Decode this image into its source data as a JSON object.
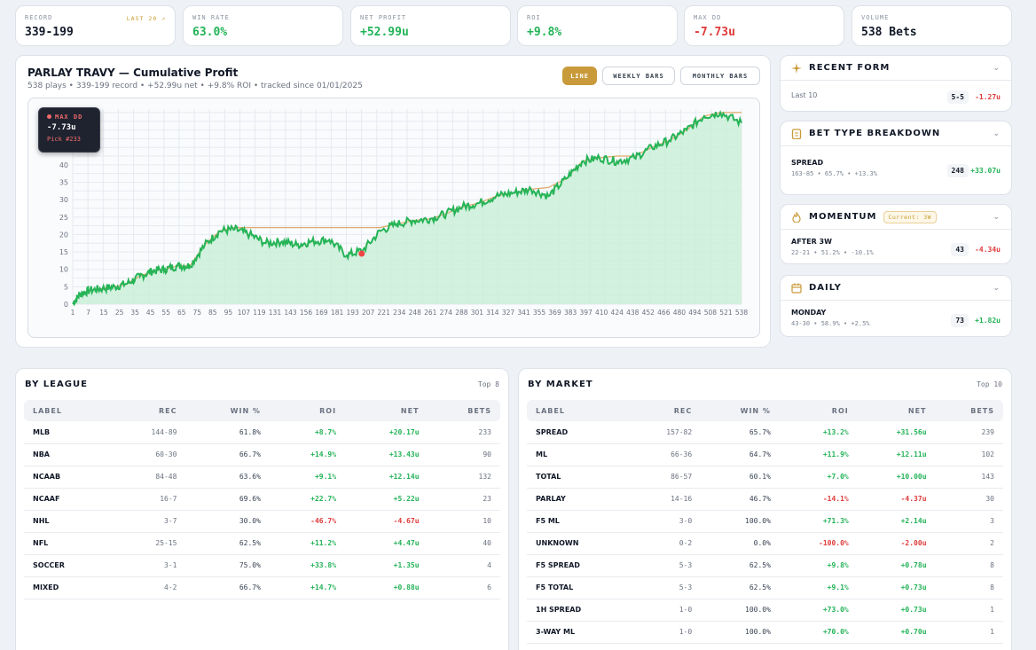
{
  "stats": [
    {
      "label": "RECORD",
      "value": "339-199",
      "tag": "LAST 20 ↗",
      "color": "#111827"
    },
    {
      "label": "WIN RATE",
      "value": "63.0%",
      "color": "#22b357"
    },
    {
      "label": "NET PROFIT",
      "value": "+52.99u",
      "color": "#22b357"
    },
    {
      "label": "ROI",
      "value": "+9.8%",
      "color": "#22b357"
    },
    {
      "label": "MAX DD",
      "value": "-7.73u",
      "color": "#e03b3b"
    },
    {
      "label": "VOLUME",
      "value": "538 Bets",
      "color": "#111827"
    }
  ],
  "chart": {
    "title": "PARLAY TRAVY — Cumulative Profit",
    "subtitle": "538 plays • 339-199 record • +52.99u net • +9.8% ROI • tracked since 01/01/2025",
    "toggles": [
      {
        "label": "LINE",
        "active": true
      },
      {
        "label": "WEEKLY BARS",
        "active": false
      },
      {
        "label": "MONTHLY BARS",
        "active": false
      }
    ],
    "tooltip": {
      "label": "MAX DD",
      "value": "-7.73u",
      "pick": "Pick #233"
    }
  },
  "chart_data": {
    "type": "area",
    "title": "PARLAY TRAVY — Cumulative Profit",
    "x_ticks": [
      "1",
      "7",
      "15",
      "25",
      "35",
      "45",
      "55",
      "65",
      "75",
      "85",
      "95",
      "107",
      "119",
      "131",
      "143",
      "156",
      "169",
      "181",
      "193",
      "207",
      "221",
      "234",
      "248",
      "261",
      "274",
      "288",
      "301",
      "314",
      "327",
      "341",
      "355",
      "369",
      "383",
      "397",
      "410",
      "424",
      "438",
      "452",
      "466",
      "480",
      "494",
      "508",
      "521",
      "538"
    ],
    "y_ticks": [
      0,
      5,
      10,
      15,
      20,
      25,
      30,
      35,
      40,
      45,
      50,
      55
    ],
    "ylim": [
      0,
      56
    ],
    "xlim": [
      1,
      538
    ],
    "series": [
      {
        "x": [
          1,
          7,
          15,
          25,
          35,
          45,
          55,
          65,
          75,
          85,
          95,
          107,
          119,
          131,
          143,
          156,
          169,
          181,
          193,
          207,
          221,
          234,
          248,
          261,
          274,
          288,
          301,
          314,
          327,
          341,
          355,
          369,
          383,
          397,
          410,
          424,
          438,
          452,
          466,
          480,
          494,
          508,
          521,
          538
        ],
        "values": [
          0,
          3,
          4,
          4.5,
          5,
          6,
          8,
          9.5,
          10,
          11,
          11,
          17,
          21,
          21.5,
          20,
          17.5,
          18,
          17,
          18,
          18.5,
          14,
          15.5,
          21,
          23,
          24,
          24.5,
          26,
          28,
          29,
          31,
          32,
          33,
          31,
          36,
          41,
          42,
          41,
          42,
          45,
          47,
          50,
          54,
          55,
          52
        ]
      }
    ],
    "peak_line": {
      "x": [
        1,
        7,
        15,
        25,
        35,
        45,
        55,
        65,
        75,
        85,
        95,
        107,
        119,
        131,
        143,
        156,
        169,
        181,
        193,
        207,
        221,
        234,
        248,
        261,
        274,
        288,
        301,
        314,
        327,
        341,
        355,
        369,
        383,
        397,
        410,
        424,
        438,
        452,
        466,
        480,
        494,
        508,
        521,
        538
      ],
      "values": [
        0,
        3,
        4,
        4.5,
        5,
        6,
        8,
        9.5,
        10,
        11,
        11,
        17,
        21,
        22,
        22,
        22,
        22,
        22,
        22,
        22,
        22,
        22,
        22,
        23,
        24,
        24.5,
        26,
        28,
        29,
        31,
        32,
        33,
        33.5,
        36,
        41,
        42,
        42.5,
        42.5,
        45,
        47,
        50,
        54,
        55,
        55
      ]
    },
    "max_dd_point": {
      "x": 233,
      "y": 14.5
    },
    "grid": true
  },
  "recent_form": {
    "title": "RECENT FORM",
    "label": "Last 10",
    "record": "5-5",
    "net": "-1.27u"
  },
  "bet_type": {
    "title": "BET TYPE BREAKDOWN",
    "label": "SPREAD",
    "sub": "163-85 • 65.7% • +13.3%",
    "count": "248",
    "net": "+33.07u"
  },
  "momentum": {
    "title": "MOMENTUM",
    "current": "Current: 3W",
    "label": "AFTER 3W",
    "sub": "22-21 • 51.2% • -10.1%",
    "count": "43",
    "net": "-4.34u"
  },
  "daily": {
    "title": "DAILY",
    "label": "MONDAY",
    "sub": "43-30 • 58.9% • +2.5%",
    "count": "73",
    "net": "+1.82u"
  },
  "by_league": {
    "title": "BY LEAGUE",
    "top": "Top 8",
    "columns": [
      "LABEL",
      "REC",
      "WIN %",
      "ROI",
      "NET",
      "BETS"
    ],
    "rows": [
      [
        "MLB",
        "144-89",
        "61.8%",
        "+8.7%",
        "+20.17u",
        "233"
      ],
      [
        "NBA",
        "60-30",
        "66.7%",
        "+14.9%",
        "+13.43u",
        "90"
      ],
      [
        "NCAAB",
        "84-48",
        "63.6%",
        "+9.1%",
        "+12.14u",
        "132"
      ],
      [
        "NCAAF",
        "16-7",
        "69.6%",
        "+22.7%",
        "+5.22u",
        "23"
      ],
      [
        "NHL",
        "3-7",
        "30.0%",
        "-46.7%",
        "-4.67u",
        "10"
      ],
      [
        "NFL",
        "25-15",
        "62.5%",
        "+11.2%",
        "+4.47u",
        "40"
      ],
      [
        "SOCCER",
        "3-1",
        "75.0%",
        "+33.8%",
        "+1.35u",
        "4"
      ],
      [
        "MIXED",
        "4-2",
        "66.7%",
        "+14.7%",
        "+0.88u",
        "6"
      ]
    ]
  },
  "by_market": {
    "title": "BY MARKET",
    "top": "Top 10",
    "columns": [
      "LABEL",
      "REC",
      "WIN %",
      "ROI",
      "NET",
      "BETS"
    ],
    "rows": [
      [
        "SPREAD",
        "157-82",
        "65.7%",
        "+13.2%",
        "+31.56u",
        "239"
      ],
      [
        "ML",
        "66-36",
        "64.7%",
        "+11.9%",
        "+12.11u",
        "102"
      ],
      [
        "TOTAL",
        "86-57",
        "60.1%",
        "+7.0%",
        "+10.00u",
        "143"
      ],
      [
        "PARLAY",
        "14-16",
        "46.7%",
        "-14.1%",
        "-4.37u",
        "30"
      ],
      [
        "F5 ML",
        "3-0",
        "100.0%",
        "+71.3%",
        "+2.14u",
        "3"
      ],
      [
        "UNKNOWN",
        "0-2",
        "0.0%",
        "-100.0%",
        "-2.00u",
        "2"
      ],
      [
        "F5 SPREAD",
        "5-3",
        "62.5%",
        "+9.8%",
        "+0.78u",
        "8"
      ],
      [
        "F5 TOTAL",
        "5-3",
        "62.5%",
        "+9.1%",
        "+0.73u",
        "8"
      ],
      [
        "1H SPREAD",
        "1-0",
        "100.0%",
        "+73.0%",
        "+0.73u",
        "1"
      ],
      [
        "3-WAY ML",
        "1-0",
        "100.0%",
        "+70.0%",
        "+0.70u",
        "1"
      ]
    ]
  }
}
